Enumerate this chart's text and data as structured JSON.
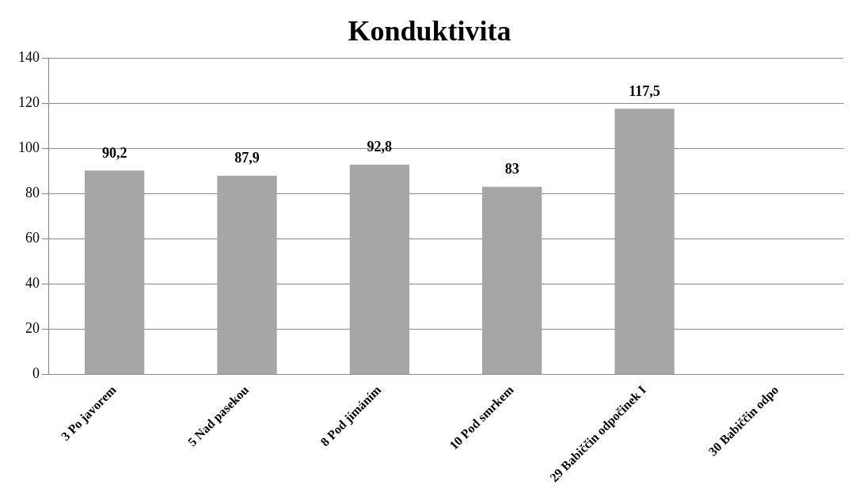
{
  "chart_data": {
    "type": "bar",
    "title": "Konduktivita",
    "categories": [
      "3 Po javorem",
      "5 Nad pasekou",
      "8 Pod jímáním",
      "10 Pod smrkem",
      "29 Babiččin odpočinek I",
      "30 Babiččin odpo"
    ],
    "values": [
      90.2,
      87.9,
      92.8,
      83,
      117.5,
      null
    ],
    "value_labels": [
      "90,2",
      "87,9",
      "92,8",
      "83",
      "117,5",
      null
    ],
    "color": "#a6a6a6",
    "ylim": [
      0,
      140
    ],
    "yticks": [
      0,
      20,
      40,
      60,
      80,
      100,
      120,
      140
    ],
    "grid": "y",
    "legend": false
  }
}
